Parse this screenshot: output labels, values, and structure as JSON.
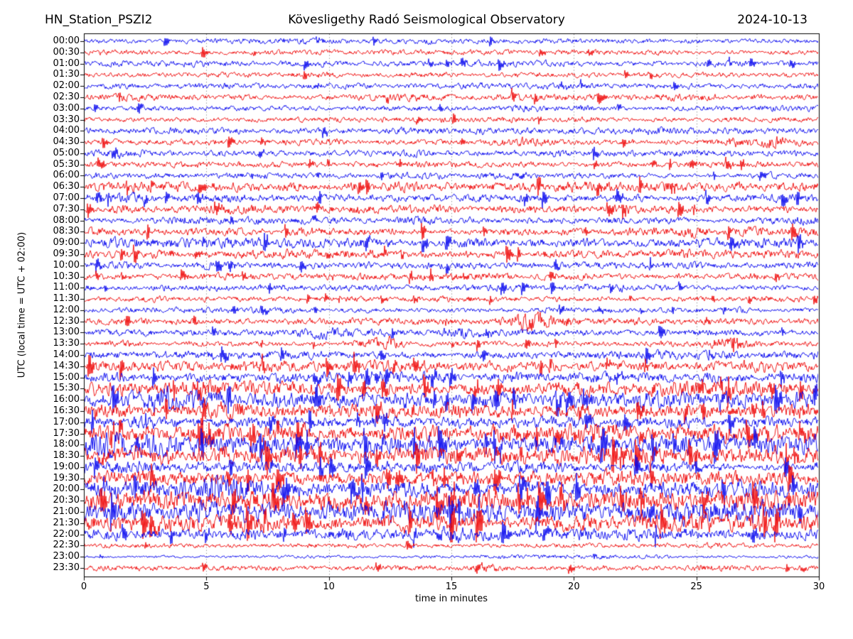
{
  "header": {
    "station": "HN_Station_PSZI2",
    "observatory": "Kövesligethy Radó Seismological Observatory",
    "date": "2024-10-13"
  },
  "chart_data": {
    "type": "line",
    "subtype": "helicorder-seismogram",
    "title": "HN_Station_PSZI2 — Kövesligethy Radó Seismological Observatory — 2024-10-13",
    "xlabel": "time in minutes",
    "ylabel": "UTC (local time = UTC + 02:00)",
    "xlim": [
      0,
      30
    ],
    "xticks": [
      0,
      5,
      10,
      15,
      20,
      25,
      30
    ],
    "grid": {
      "style": "dotted-vertical",
      "at_minutes": [
        5,
        10,
        15,
        20,
        25
      ],
      "color": "#888888"
    },
    "legend": "none",
    "minutes_per_row": 30,
    "trace_colors": {
      "even_rows_blue": "#0000ee",
      "odd_rows_red": "#ee0000"
    },
    "frame_color": "#000000",
    "rows": [
      {
        "label": "00:00",
        "color": "blue",
        "amp": 2.2,
        "events": []
      },
      {
        "label": "00:30",
        "color": "red",
        "amp": 2.2,
        "events": []
      },
      {
        "label": "01:00",
        "color": "blue",
        "amp": 2.5,
        "events": []
      },
      {
        "label": "01:30",
        "color": "red",
        "amp": 2.2,
        "events": []
      },
      {
        "label": "02:00",
        "color": "blue",
        "amp": 2.5,
        "events": []
      },
      {
        "label": "02:30",
        "color": "red",
        "amp": 2.9,
        "events": []
      },
      {
        "label": "03:00",
        "color": "blue",
        "amp": 2.5,
        "events": []
      },
      {
        "label": "03:30",
        "color": "red",
        "amp": 2.3,
        "events": []
      },
      {
        "label": "04:00",
        "color": "blue",
        "amp": 2.9,
        "events": []
      },
      {
        "label": "04:30",
        "color": "red",
        "amp": 2.5,
        "events": [
          {
            "m": 18.5,
            "w": 0.7,
            "g": 2.2
          },
          {
            "m": 27.8,
            "w": 1.0,
            "g": 2.6
          }
        ]
      },
      {
        "label": "05:00",
        "color": "blue",
        "amp": 2.9,
        "events": []
      },
      {
        "label": "05:30",
        "color": "red",
        "amp": 2.5,
        "events": []
      },
      {
        "label": "06:00",
        "color": "blue",
        "amp": 2.5,
        "events": []
      },
      {
        "label": "06:30",
        "color": "red",
        "amp": 4.4,
        "events": []
      },
      {
        "label": "07:00",
        "color": "blue",
        "amp": 3.6,
        "events": []
      },
      {
        "label": "07:30",
        "color": "red",
        "amp": 3.8,
        "events": []
      },
      {
        "label": "08:00",
        "color": "blue",
        "amp": 3.0,
        "events": []
      },
      {
        "label": "08:30",
        "color": "red",
        "amp": 3.8,
        "events": []
      },
      {
        "label": "09:00",
        "color": "blue",
        "amp": 4.2,
        "events": []
      },
      {
        "label": "09:30",
        "color": "red",
        "amp": 3.5,
        "events": []
      },
      {
        "label": "10:00",
        "color": "blue",
        "amp": 3.1,
        "events": []
      },
      {
        "label": "10:30",
        "color": "red",
        "amp": 2.9,
        "events": []
      },
      {
        "label": "11:00",
        "color": "blue",
        "amp": 2.9,
        "events": []
      },
      {
        "label": "11:30",
        "color": "red",
        "amp": 2.4,
        "events": []
      },
      {
        "label": "12:00",
        "color": "blue",
        "amp": 2.4,
        "events": []
      },
      {
        "label": "12:30",
        "color": "red",
        "amp": 2.9,
        "events": [
          {
            "m": 18.2,
            "w": 0.55,
            "g": 3.4
          }
        ]
      },
      {
        "label": "13:00",
        "color": "blue",
        "amp": 2.9,
        "events": [
          {
            "m": 9.6,
            "w": 0.8,
            "g": 1.9
          },
          {
            "m": 15.3,
            "w": 0.6,
            "g": 1.9
          }
        ]
      },
      {
        "label": "13:30",
        "color": "red",
        "amp": 2.4,
        "events": [
          {
            "m": 12.2,
            "w": 0.55,
            "g": 3.4
          },
          {
            "m": 26.3,
            "w": 0.6,
            "g": 3.1
          }
        ]
      },
      {
        "label": "14:00",
        "color": "blue",
        "amp": 3.6,
        "events": []
      },
      {
        "label": "14:30",
        "color": "red",
        "amp": 5.0,
        "events": []
      },
      {
        "label": "15:00",
        "color": "blue",
        "amp": 4.6,
        "events": []
      },
      {
        "label": "15:30",
        "color": "red",
        "amp": 6.2,
        "events": []
      },
      {
        "label": "16:00",
        "color": "blue",
        "amp": 7.2,
        "events": [
          {
            "m": 3.3,
            "w": 0.8,
            "g": 1.6
          }
        ]
      },
      {
        "label": "16:30",
        "color": "red",
        "amp": 6.2,
        "events": []
      },
      {
        "label": "17:00",
        "color": "blue",
        "amp": 5.2,
        "events": []
      },
      {
        "label": "17:30",
        "color": "red",
        "amp": 7.2,
        "events": []
      },
      {
        "label": "18:00",
        "color": "blue",
        "amp": 8.6,
        "events": [
          {
            "m": 1.8,
            "w": 1.2,
            "g": 1.5
          }
        ]
      },
      {
        "label": "18:30",
        "color": "red",
        "amp": 8.2,
        "events": []
      },
      {
        "label": "19:00",
        "color": "blue",
        "amp": 5.2,
        "events": []
      },
      {
        "label": "19:30",
        "color": "red",
        "amp": 6.2,
        "events": []
      },
      {
        "label": "20:00",
        "color": "blue",
        "amp": 7.2,
        "events": [
          {
            "m": 5.2,
            "w": 1.0,
            "g": 1.4
          }
        ]
      },
      {
        "label": "20:30",
        "color": "red",
        "amp": 8.6,
        "events": []
      },
      {
        "label": "21:00",
        "color": "blue",
        "amp": 9.2,
        "events": [
          {
            "m": 6.0,
            "w": 1.2,
            "g": 1.3
          }
        ]
      },
      {
        "label": "21:30",
        "color": "red",
        "amp": 8.2,
        "events": []
      },
      {
        "label": "22:00",
        "color": "blue",
        "amp": 5.2,
        "events": []
      },
      {
        "label": "22:30",
        "color": "red",
        "amp": 2.1,
        "events": []
      },
      {
        "label": "23:00",
        "color": "blue",
        "amp": 1.3,
        "events": [
          {
            "m": 20.0,
            "w": 4.0,
            "g": 1.5
          }
        ]
      },
      {
        "label": "23:30",
        "color": "red",
        "amp": 2.3,
        "events": [
          {
            "m": 16.7,
            "w": 0.5,
            "g": 1.8
          },
          {
            "m": 25.6,
            "w": 0.6,
            "g": 1.7
          }
        ]
      }
    ]
  }
}
